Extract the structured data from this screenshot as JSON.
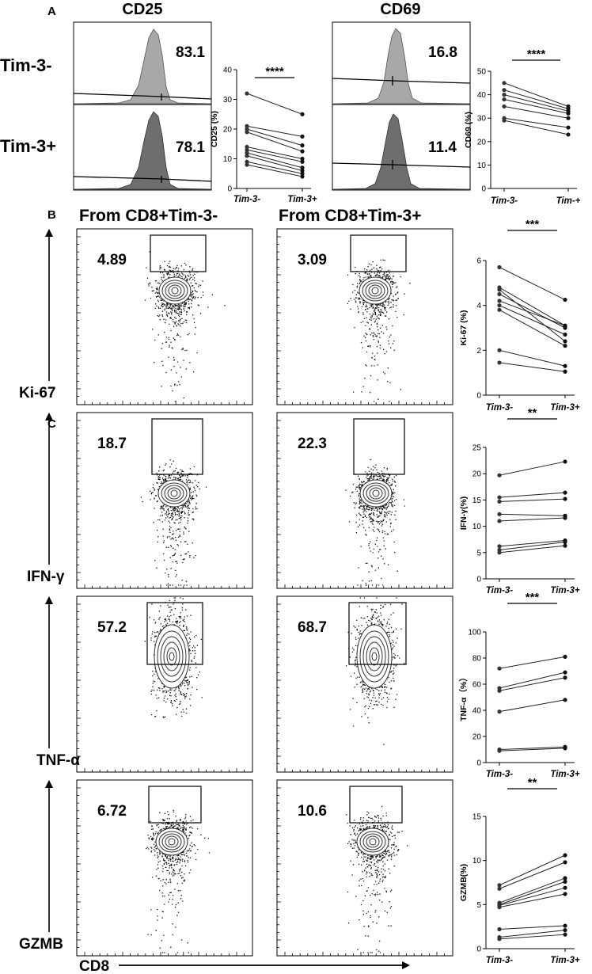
{
  "panels": {
    "A": {
      "letter": "A",
      "col1": "CD25",
      "col2": "CD69"
    },
    "B": {
      "letter": "B",
      "col1": "From CD8+Tim-3-",
      "col2": "From CD8+Tim-3+"
    },
    "C": {
      "letter": "C"
    }
  },
  "histogram_rows": [
    "Tim-3-",
    "Tim-3+"
  ],
  "histogram_values": {
    "CD25": [
      "83.1",
      "78.1"
    ],
    "CD69": [
      "16.8",
      "11.4"
    ]
  },
  "flow_rows": [
    {
      "marker": "Ki-67",
      "values": [
        "4.89",
        "3.09"
      ]
    },
    {
      "marker": "IFN-γ",
      "values": [
        "18.7",
        "22.3"
      ]
    },
    {
      "marker": "TNF-α",
      "values": [
        "57.2",
        "68.7"
      ]
    },
    {
      "marker": "GZMB",
      "values": [
        "6.72",
        "10.6"
      ]
    }
  ],
  "x_axis_label": "CD8",
  "colors": {
    "hist_light": "#a8a8a8",
    "hist_dark": "#6e6e6e",
    "points": "#333333"
  },
  "chart_data": [
    {
      "type": "scatter",
      "ylabel": "CD25 (%)",
      "categories": [
        "Tim-3-",
        "Tim-3+"
      ],
      "ylim": [
        0,
        40
      ],
      "yticks": [
        0,
        10,
        20,
        30,
        40
      ],
      "significance": "****",
      "pairs": [
        [
          32,
          25
        ],
        [
          21,
          17.5
        ],
        [
          20,
          14.5
        ],
        [
          19,
          12.5
        ],
        [
          14,
          10
        ],
        [
          13,
          9
        ],
        [
          12,
          7
        ],
        [
          11,
          6
        ],
        [
          9,
          5
        ],
        [
          8,
          4
        ]
      ]
    },
    {
      "type": "scatter",
      "ylabel": "CD69 (%)",
      "categories": [
        "Tim-3-",
        "Tim-+"
      ],
      "ylim": [
        0,
        50
      ],
      "yticks": [
        0,
        10,
        20,
        30,
        40,
        50
      ],
      "significance": "****",
      "pairs": [
        [
          45,
          35
        ],
        [
          42,
          34
        ],
        [
          40,
          33
        ],
        [
          38,
          32
        ],
        [
          35,
          30
        ],
        [
          30,
          26
        ],
        [
          29,
          23
        ]
      ]
    },
    {
      "type": "scatter",
      "ylabel": "Ki-67 (%)",
      "categories": [
        "Tim-3-",
        "Tim-3+"
      ],
      "ylim": [
        0,
        6
      ],
      "yticks": [
        0,
        2,
        4,
        6
      ],
      "significance": "***",
      "pairs": [
        [
          5.7,
          4.25
        ],
        [
          4.8,
          3.1
        ],
        [
          4.7,
          2.4
        ],
        [
          4.5,
          3.0
        ],
        [
          4.2,
          3.1
        ],
        [
          4.0,
          2.7
        ],
        [
          3.8,
          2.2
        ],
        [
          2.0,
          1.3
        ],
        [
          1.45,
          1.05
        ]
      ]
    },
    {
      "type": "scatter",
      "ylabel": "IFN-γ(%)",
      "categories": [
        "Tim-3-",
        "Tim-3+"
      ],
      "ylim": [
        0,
        25
      ],
      "yticks": [
        0,
        5,
        10,
        15,
        20,
        25
      ],
      "significance": "**",
      "pairs": [
        [
          19.7,
          22.3
        ],
        [
          15.5,
          16.4
        ],
        [
          14.7,
          15.2
        ],
        [
          12.3,
          12.0
        ],
        [
          11.0,
          11.6
        ],
        [
          6.2,
          7.3
        ],
        [
          5.5,
          7.0
        ],
        [
          5.0,
          6.3
        ]
      ]
    },
    {
      "type": "scatter",
      "ylabel": "TNF-α（%）",
      "categories": [
        "Tim-3-",
        "Tim-3+"
      ],
      "ylim": [
        0,
        100
      ],
      "yticks": [
        0,
        20,
        40,
        60,
        80,
        100
      ],
      "significance": "***",
      "pairs": [
        [
          72,
          81
        ],
        [
          57,
          69
        ],
        [
          55,
          65
        ],
        [
          39,
          48
        ],
        [
          10,
          12
        ],
        [
          9,
          11
        ]
      ]
    },
    {
      "type": "scatter",
      "ylabel": "GZMB(%)",
      "categories": [
        "Tim-3-",
        "Tim-3+"
      ],
      "ylim": [
        0,
        15
      ],
      "yticks": [
        0,
        5,
        10,
        15
      ],
      "significance": "**",
      "pairs": [
        [
          7.2,
          10.6
        ],
        [
          6.8,
          9.8
        ],
        [
          5.2,
          8.0
        ],
        [
          5.0,
          7.6
        ],
        [
          4.9,
          6.9
        ],
        [
          4.7,
          6.2
        ],
        [
          2.2,
          2.6
        ],
        [
          1.3,
          2.1
        ],
        [
          1.1,
          1.6
        ]
      ]
    }
  ]
}
